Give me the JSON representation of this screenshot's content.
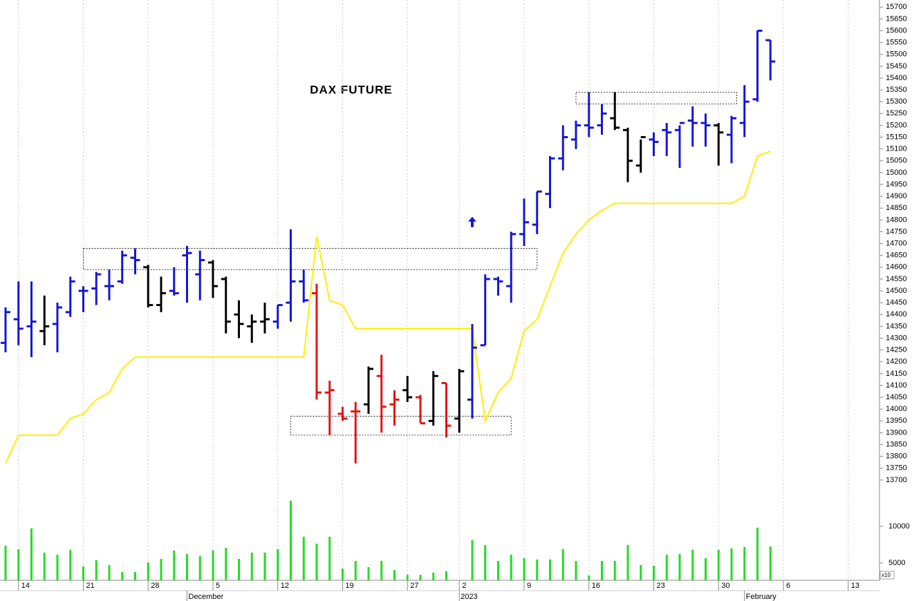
{
  "chart_data": {
    "type": "ohlc",
    "title": "DAX FUTURE",
    "categories": [
      null,
      "14",
      null,
      null,
      null,
      null,
      "21",
      null,
      null,
      null,
      null,
      "28",
      null,
      null,
      null,
      null,
      "5",
      null,
      null,
      null,
      null,
      "12",
      null,
      null,
      null,
      null,
      "19",
      null,
      null,
      null,
      null,
      "27",
      null,
      null,
      null,
      "2",
      null,
      null,
      null,
      null,
      "9",
      null,
      null,
      null,
      null,
      "16",
      null,
      null,
      null,
      null,
      "23",
      null,
      null,
      null,
      null,
      "30",
      null,
      null,
      null,
      null,
      "6",
      null,
      null,
      null,
      null,
      "13",
      null,
      null
    ],
    "month_labels": [
      null,
      null,
      null,
      null,
      null,
      null,
      null,
      null,
      null,
      null,
      null,
      null,
      null,
      null,
      "December",
      null,
      null,
      null,
      null,
      null,
      null,
      null,
      null,
      null,
      null,
      null,
      null,
      null,
      null,
      null,
      null,
      null,
      null,
      null,
      null,
      "2023",
      null,
      null,
      null,
      null,
      null,
      null,
      null,
      null,
      null,
      null,
      null,
      null,
      null,
      null,
      null,
      null,
      null,
      null,
      null,
      null,
      null,
      "February",
      null,
      null,
      null,
      null,
      null,
      null,
      null,
      null,
      null,
      null
    ],
    "ohlc": {
      "open": [
        14280,
        14380,
        14350,
        14330,
        14360,
        14410,
        14500,
        14510,
        14520,
        14540,
        14640,
        14600,
        14440,
        14500,
        14650,
        14570,
        14620,
        14550,
        14400,
        14350,
        14370,
        14370,
        14450,
        14540,
        14490,
        14070,
        13980,
        13990,
        14020,
        14140,
        14020,
        14080,
        14050,
        13950,
        14110,
        13960,
        14040,
        14270,
        14550,
        14520,
        14740,
        14780,
        14910,
        15060,
        15140,
        15200,
        15200,
        15230,
        15180,
        15030,
        15140,
        15180,
        15180,
        15220,
        15210,
        15200,
        15160,
        15210,
        15310,
        15560,
        null,
        null,
        null,
        null,
        null,
        null,
        null,
        null
      ],
      "high": [
        14430,
        14540,
        14540,
        14480,
        14450,
        14560,
        14520,
        14580,
        14590,
        14670,
        14680,
        14610,
        14560,
        14600,
        14690,
        14670,
        14630,
        14560,
        14460,
        14400,
        14450,
        14440,
        14760,
        14590,
        14530,
        14120,
        14010,
        14030,
        14180,
        14230,
        14080,
        14140,
        14060,
        14160,
        14110,
        14170,
        14360,
        14570,
        14560,
        14750,
        14890,
        14920,
        15070,
        15200,
        15220,
        15340,
        15290,
        15340,
        15190,
        15140,
        15170,
        15210,
        15200,
        15280,
        15250,
        15210,
        15240,
        15370,
        15600,
        15560,
        null,
        null,
        null,
        null,
        null,
        null,
        null,
        null
      ],
      "low": [
        14240,
        14270,
        14220,
        14270,
        14240,
        14390,
        14410,
        14440,
        14460,
        14530,
        14570,
        14430,
        14410,
        14480,
        14450,
        14460,
        14470,
        14320,
        14300,
        14280,
        14320,
        14340,
        14370,
        14450,
        14040,
        13890,
        13950,
        13770,
        13980,
        13900,
        13930,
        14030,
        13940,
        13930,
        13880,
        13900,
        13960,
        14270,
        14480,
        14450,
        14690,
        14740,
        14850,
        15010,
        15100,
        15150,
        15160,
        15180,
        14960,
        15000,
        15070,
        15070,
        15020,
        15110,
        15110,
        15030,
        15040,
        15150,
        15300,
        15390,
        null,
        null,
        null,
        null,
        null,
        null,
        null,
        null
      ],
      "close": [
        14410,
        14340,
        14370,
        14350,
        14430,
        14540,
        14500,
        14570,
        14520,
        14650,
        14630,
        14440,
        14490,
        14490,
        14660,
        14630,
        14520,
        14370,
        14360,
        14370,
        14380,
        14440,
        14540,
        14460,
        14070,
        14080,
        13960,
        13990,
        14170,
        14010,
        14040,
        14050,
        13940,
        14140,
        13930,
        14160,
        14260,
        14550,
        14540,
        14740,
        14790,
        14920,
        15060,
        15150,
        15200,
        15190,
        15250,
        15190,
        15050,
        15150,
        15130,
        15170,
        15210,
        15210,
        15200,
        15170,
        15230,
        15300,
        15600,
        15470,
        null,
        null,
        null,
        null,
        null,
        null,
        null,
        null
      ]
    },
    "bar_colors": [
      "#1515d6",
      "#1515d6",
      "#1515d6",
      "#000000",
      "#1515d6",
      "#1515d6",
      "#1515d6",
      "#1515d6",
      "#1515d6",
      "#1515d6",
      "#1515d6",
      "#000000",
      "#000000",
      "#1515d6",
      "#1515d6",
      "#1515d6",
      "#000000",
      "#000000",
      "#000000",
      "#000000",
      "#000000",
      "#1515d6",
      "#1515d6",
      "#1515d6",
      "#e01414",
      "#e01414",
      "#e01414",
      "#e01414",
      "#000000",
      "#e01414",
      "#e01414",
      "#000000",
      "#e01414",
      "#000000",
      "#e01414",
      "#000000",
      "#1515d6",
      "#1515d6",
      "#1515d6",
      "#1515d6",
      "#1515d6",
      "#1515d6",
      "#1515d6",
      "#1515d6",
      "#1515d6",
      "#1515d6",
      "#1515d6",
      "#000000",
      "#000000",
      "#000000",
      "#1515d6",
      "#1515d6",
      "#1515d6",
      "#1515d6",
      "#1515d6",
      "#000000",
      "#1515d6",
      "#1515d6",
      "#1515d6",
      "#1515d6",
      null,
      null,
      null,
      null,
      null,
      null,
      null,
      null
    ],
    "stop_line": {
      "color": "#ffee00",
      "values": [
        13770,
        13890,
        13890,
        13890,
        13890,
        13960,
        13980,
        14040,
        14070,
        14170,
        14220,
        14220,
        14220,
        14220,
        14220,
        14220,
        14220,
        14220,
        14220,
        14220,
        14220,
        14220,
        14220,
        14220,
        14730,
        14460,
        14440,
        14340,
        14340,
        14340,
        14340,
        14340,
        14340,
        14340,
        14340,
        14340,
        14340,
        13950,
        14070,
        14130,
        14330,
        14380,
        14520,
        14660,
        14740,
        14800,
        14840,
        14870,
        14870,
        14870,
        14870,
        14870,
        14870,
        14870,
        14870,
        14870,
        14870,
        14900,
        15070,
        15090,
        null,
        null,
        null,
        null,
        null,
        null,
        null,
        null
      ]
    },
    "ylim": [
      13650,
      15730
    ],
    "yticks": [
      13700,
      13750,
      13800,
      13850,
      13900,
      13950,
      14000,
      14050,
      14100,
      14150,
      14200,
      14250,
      14300,
      14350,
      14400,
      14450,
      14500,
      14550,
      14600,
      14650,
      14700,
      14750,
      14800,
      14850,
      14900,
      14950,
      15000,
      15050,
      15100,
      15150,
      15200,
      15250,
      15300,
      15350,
      15400,
      15450,
      15500,
      15550,
      15600,
      15650,
      15700
    ],
    "grid": true,
    "boxes": [
      {
        "x": [
          6,
          41
        ],
        "y": [
          14590,
          14680
        ]
      },
      {
        "x": [
          22,
          39
        ],
        "y": [
          13890,
          13970
        ]
      },
      {
        "x": [
          44,
          56.4
        ],
        "y": [
          15290,
          15340
        ]
      }
    ],
    "arrow": {
      "x": 36,
      "y": 14790,
      "color": "#1515d6"
    },
    "volume": {
      "color": "#22dd22",
      "values": [
        7360,
        6880,
        9710,
        6410,
        6130,
        6790,
        4530,
        5380,
        4720,
        3770,
        3770,
        5090,
        5560,
        6700,
        6220,
        5940,
        6700,
        7070,
        5560,
        6410,
        6410,
        6880,
        13480,
        8580,
        7640,
        8580,
        4240,
        5280,
        4430,
        5280,
        4050,
        3390,
        3390,
        3680,
        3870,
        null,
        8110,
        7450,
        5280,
        6130,
        5660,
        5470,
        5470,
        6880,
        5280,
        3300,
        5280,
        5280,
        7450,
        4720,
        4620,
        6130,
        6220,
        6790,
        5660,
        6790,
        6980,
        7170,
        9810,
        7260,
        null,
        null,
        null,
        null,
        null,
        null,
        null,
        null
      ],
      "ylim": [
        2640,
        14700
      ],
      "yticks": [
        5000,
        10000
      ],
      "unit_label": "x10"
    }
  }
}
